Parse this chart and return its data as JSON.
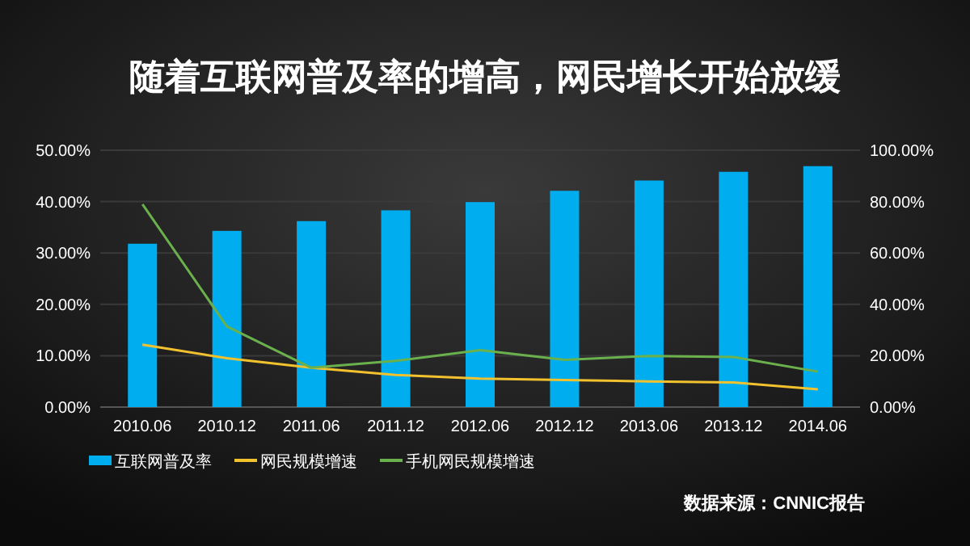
{
  "chart_data": {
    "type": "bar",
    "title": "随着互联网普及率的增高，网民增长开始放缓",
    "categories": [
      "2010.06",
      "2010.12",
      "2011.06",
      "2011.12",
      "2012.06",
      "2012.12",
      "2013.06",
      "2013.12",
      "2014.06"
    ],
    "series": [
      {
        "name": "互联网普及率",
        "color": "#00aeef",
        "values": [
          31.8,
          34.3,
          36.2,
          38.3,
          39.9,
          42.1,
          44.1,
          45.8,
          46.9
        ]
      },
      {
        "name": "网民规模增速",
        "type": "line",
        "axis": "y2",
        "color": "#f2c12e",
        "values": [
          24.3,
          19,
          15.3,
          12.5,
          11.1,
          10.5,
          10,
          9.6,
          6.9
        ]
      },
      {
        "name": "手机网民规模增速",
        "type": "line",
        "axis": "y2",
        "color": "#6ab04c",
        "values": [
          79,
          31.4,
          15.3,
          18,
          22.2,
          18.4,
          19.9,
          19.5,
          13.8
        ]
      }
    ],
    "ylim": [
      0,
      50
    ],
    "yticks": [
      {
        "value": 0,
        "label": "0.00%"
      },
      {
        "value": 10,
        "label": "10.00%"
      },
      {
        "value": 20,
        "label": "20.00%"
      },
      {
        "value": 30,
        "label": "30.00%"
      },
      {
        "value": 40,
        "label": "40.00%"
      },
      {
        "value": 50,
        "label": "50.00%"
      }
    ],
    "y2lim": [
      0,
      100
    ],
    "y2ticks": [
      {
        "value": 0,
        "label": "0.00%"
      },
      {
        "value": 20,
        "label": "20.00%"
      },
      {
        "value": 40,
        "label": "40.00%"
      },
      {
        "value": 60,
        "label": "60.00%"
      },
      {
        "value": 80,
        "label": "80.00%"
      },
      {
        "value": 100,
        "label": "100.00%"
      }
    ],
    "grid": "y",
    "legend": "bottom left",
    "annotations": [
      "数据来源：CNNIC报告"
    ]
  }
}
